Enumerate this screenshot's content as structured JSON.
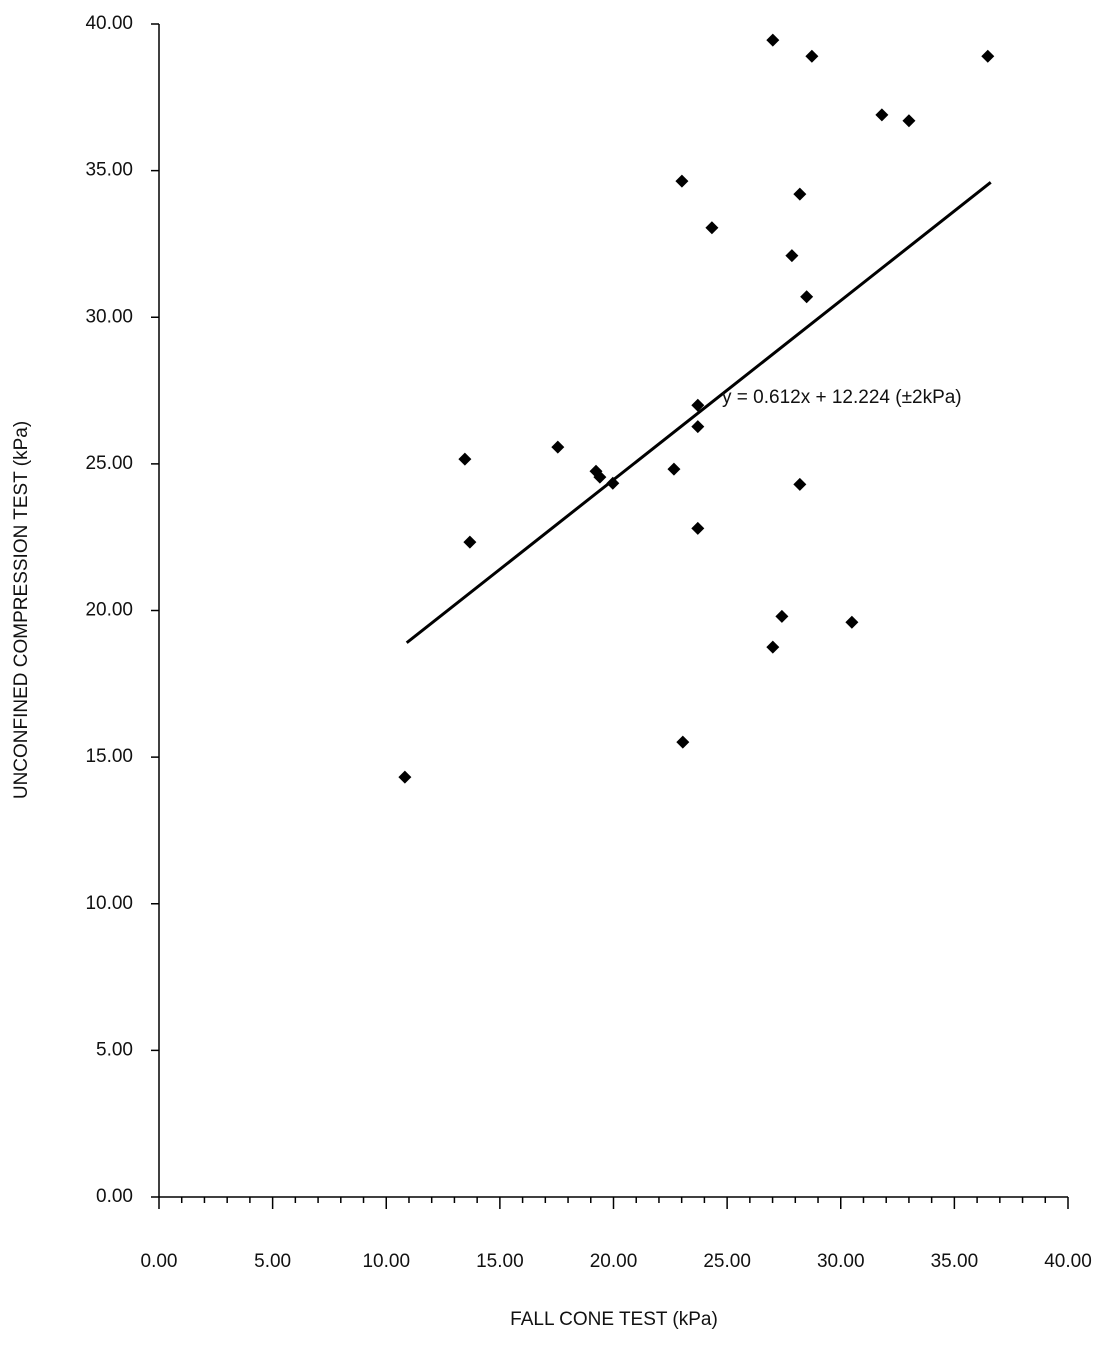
{
  "chart_data": {
    "type": "scatter",
    "x_label": "FALL CONE TEST (kPa)",
    "y_label": "UNCONFINED COMPRESSION TEST (kPa)",
    "annotation": "y = 0.612x + 12.224 (±2kPa)",
    "x": [
      10.82,
      13.46,
      13.68,
      17.55,
      19.23,
      19.4,
      19.97,
      22.66,
      23.01,
      23.05,
      23.71,
      23.71,
      23.71,
      24.33,
      27.01,
      27.41,
      27.01,
      27.85,
      28.2,
      28.2,
      28.5,
      28.73,
      30.49,
      31.81,
      33.0,
      36.47
    ],
    "values": [
      14.32,
      25.16,
      22.33,
      25.57,
      24.75,
      24.55,
      24.34,
      24.82,
      34.64,
      15.51,
      27.0,
      26.27,
      22.8,
      33.05,
      39.45,
      19.8,
      18.75,
      32.1,
      34.2,
      24.3,
      30.7,
      38.9,
      19.6,
      36.9,
      36.7,
      38.9
    ],
    "color": "#000000",
    "trendline": {
      "x": [
        10.9,
        36.6
      ],
      "y": [
        18.9,
        34.6
      ]
    },
    "xlim": [
      0,
      40
    ],
    "ylim": [
      0,
      40
    ],
    "xticks": [
      {
        "value": 0,
        "label": "0.00"
      },
      {
        "value": 5,
        "label": "5.00"
      },
      {
        "value": 10,
        "label": "10.00"
      },
      {
        "value": 15,
        "label": "15.00"
      },
      {
        "value": 20,
        "label": "20.00"
      },
      {
        "value": 25,
        "label": "25.00"
      },
      {
        "value": 30,
        "label": "30.00"
      },
      {
        "value": 35,
        "label": "35.00"
      },
      {
        "value": 40,
        "label": "40.00"
      }
    ],
    "yticks": [
      {
        "value": 0,
        "label": "0.00"
      },
      {
        "value": 5,
        "label": "5.00"
      },
      {
        "value": 10,
        "label": "10.00"
      },
      {
        "value": 15,
        "label": "15.00"
      },
      {
        "value": 20,
        "label": "20.00"
      },
      {
        "value": 25,
        "label": "25.00"
      },
      {
        "value": 30,
        "label": "30.00"
      },
      {
        "value": 35,
        "label": "35.00"
      },
      {
        "value": 40,
        "label": "40.00"
      }
    ]
  }
}
